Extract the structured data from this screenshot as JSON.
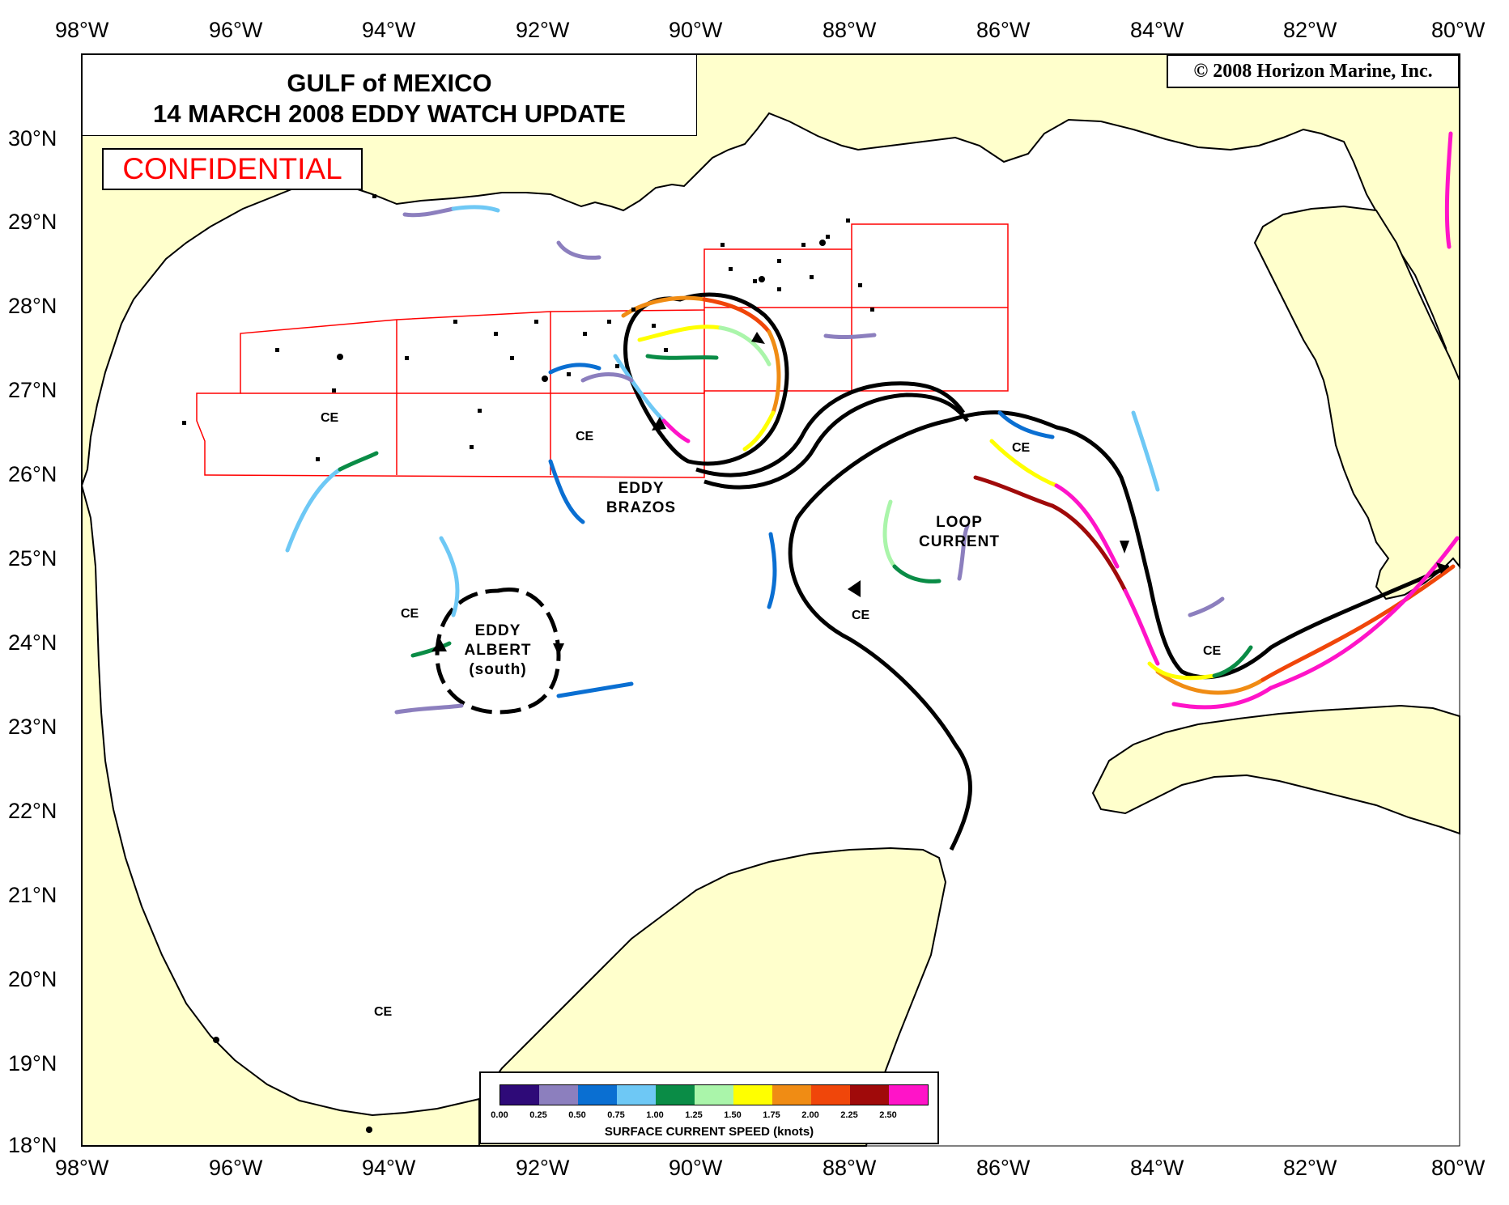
{
  "title": {
    "line1": "GULF of MEXICO",
    "line2": "14 MARCH 2008 EDDY WATCH UPDATE"
  },
  "confidential_label": "CONFIDENTIAL",
  "copyright": "© 2008 Horizon Marine, Inc.",
  "axes": {
    "longitude_labels": [
      "98°W",
      "96°W",
      "94°W",
      "92°W",
      "90°W",
      "88°W",
      "86°W",
      "84°W",
      "82°W",
      "80°W"
    ],
    "latitude_labels": [
      "30°N",
      "29°N",
      "28°N",
      "27°N",
      "26°N",
      "25°N",
      "24°N",
      "23°N",
      "22°N",
      "21°N",
      "20°N",
      "19°N",
      "18°N"
    ]
  },
  "features": {
    "eddy_brazos": {
      "line1": "EDDY",
      "line2": "BRAZOS"
    },
    "eddy_albert": {
      "line1": "EDDY",
      "line2": "ALBERT",
      "line3": "(south)"
    },
    "loop_current": {
      "line1": "LOOP",
      "line2": "CURRENT"
    },
    "ce_label": "CE"
  },
  "legend": {
    "title": "SURFACE CURRENT SPEED (knots)",
    "tick_labels": [
      "0.00",
      "0.25",
      "0.50",
      "0.75",
      "1.00",
      "1.25",
      "1.50",
      "1.75",
      "2.00",
      "2.25",
      "2.50"
    ],
    "colors": [
      "#2e0a78",
      "#8c7fbe",
      "#0a6fd2",
      "#6ec8f5",
      "#0a8c46",
      "#aaf5aa",
      "#ffff00",
      "#f08c14",
      "#f0460a",
      "#a00a0a",
      "#ff14c8"
    ]
  },
  "colors": {
    "land": "#ffffcc",
    "water": "#ffffff",
    "lease_blocks": "#ff0000",
    "eddy_outline": "#000000"
  }
}
